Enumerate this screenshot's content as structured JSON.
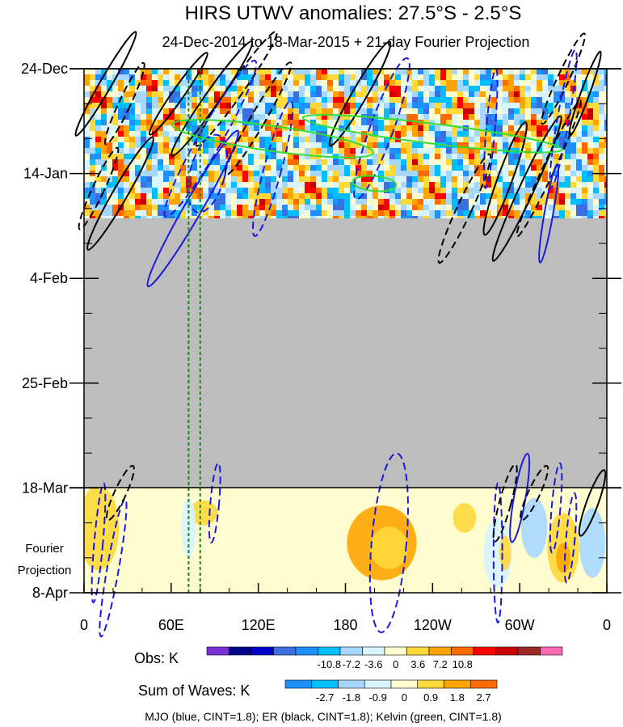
{
  "chart_data": {
    "type": "heatmap",
    "title": "HIRS UTWV anomalies: 27.5°S - 2.5°S",
    "subtitle": "24-Dec-2014 to 18-Mar-2015 + 21-day Fourier Projection",
    "x_axis": {
      "range_lon_east": [
        0,
        360
      ],
      "tick_lons": [
        0,
        60,
        120,
        180,
        240,
        300,
        360
      ],
      "tick_labels": [
        "0",
        "60E",
        "120E",
        "180",
        "120W",
        "60W",
        "0"
      ]
    },
    "y_axis": {
      "range_days": [
        0,
        105
      ],
      "tick_days": [
        0,
        21,
        42,
        63,
        84,
        105
      ],
      "tick_labels": [
        "24-Dec",
        "14-Jan",
        "4-Feb",
        "25-Feb",
        "18-Mar",
        "8-Apr"
      ],
      "projection_label_lines": [
        "Fourier",
        "Projection"
      ]
    },
    "observed_end_day": 30,
    "missing_data_days": [
      30,
      84
    ],
    "projection_start_day": 84,
    "reference_lons": [
      72,
      80
    ],
    "obs_colorbar": {
      "name": "Obs: K",
      "levels": [
        "-10.8",
        "-7.2",
        "-3.6",
        "0",
        "3.6",
        "7.2",
        "10.8"
      ],
      "colors": [
        "#7b2fd8",
        "#00008b",
        "#0000cd",
        "#3b6fe0",
        "#1e90ff",
        "#00bfff",
        "#a6d8ff",
        "#d8f4ff",
        "#fffdd0",
        "#ffd83a",
        "#ffa500",
        "#ff6a00",
        "#ff0000",
        "#c80000",
        "#a02828",
        "#ff69b4"
      ]
    },
    "waves_colorbar": {
      "name": "Sum of Waves: K",
      "levels": [
        "-2.7",
        "-1.8",
        "-0.9",
        "0",
        "0.9",
        "1.8",
        "2.7"
      ],
      "colors": [
        "#1e90ff",
        "#00bfff",
        "#a6d8ff",
        "#d8f4ff",
        "#fffdd0",
        "#ffd83a",
        "#ffa500",
        "#ff6a00"
      ]
    },
    "contour_colors": {
      "mjo": "#1a1adc",
      "er": "#000000",
      "kelvin": "#33dd33"
    },
    "footnote": "MJO (blue, CINT=1.8); ER (black, CINT=1.8); Kelvin (green, CINT=1.8)"
  }
}
